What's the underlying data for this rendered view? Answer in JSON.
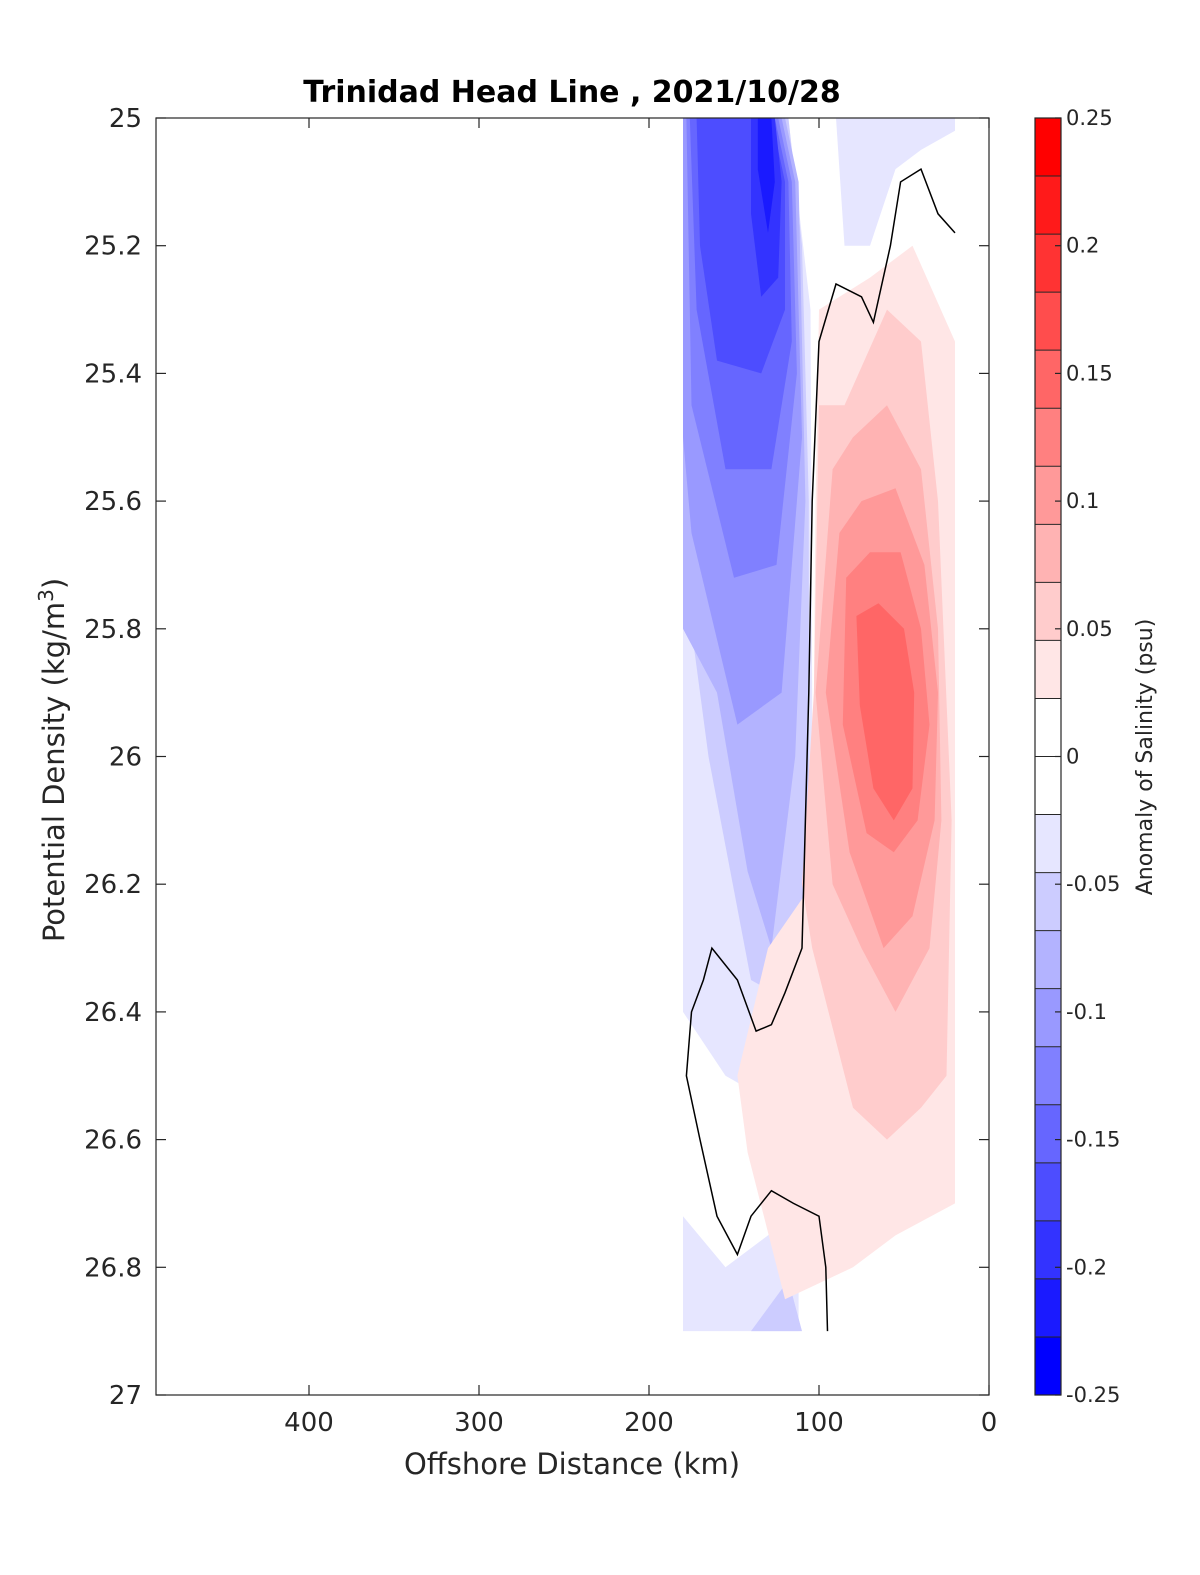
{
  "chart_data": {
    "type": "contour",
    "title": "Trinidad Head Line , 2021/10/28",
    "xlabel": "Offshore Distance (km)",
    "ylabel_main": "Potential Density (kg/m",
    "ylabel_sup": "3",
    "ylabel_close": ")",
    "colorbar_label": "Anomaly of Salinity (psu)",
    "x_reversed": true,
    "xlim": [
      490,
      0
    ],
    "ylim": [
      25,
      27
    ],
    "y_reversed": true,
    "xticks": [
      400,
      300,
      200,
      100,
      0
    ],
    "xtick_labels": [
      "400",
      "300",
      "200",
      "100",
      "0"
    ],
    "yticks": [
      25,
      25.2,
      25.4,
      25.6,
      25.8,
      26,
      26.2,
      26.4,
      26.6,
      26.8,
      27
    ],
    "ytick_labels": [
      "25",
      "25.2",
      "25.4",
      "25.6",
      "25.8",
      "26",
      "26.2",
      "26.4",
      "26.6",
      "26.8",
      "27"
    ],
    "clim": [
      -0.25,
      0.25
    ],
    "colorbar_levels": [
      -0.25,
      -0.225,
      -0.2,
      -0.175,
      -0.15,
      -0.125,
      -0.1,
      -0.075,
      -0.05,
      -0.025,
      0,
      0.025,
      0.05,
      0.075,
      0.1,
      0.125,
      0.15,
      0.175,
      0.2,
      0.225,
      0.25
    ],
    "colorbar_ticks": [
      -0.25,
      -0.2,
      -0.15,
      -0.1,
      -0.05,
      0,
      0.05,
      0.1,
      0.15,
      0.2,
      0.25
    ],
    "colorbar_tick_labels": [
      "-0.25",
      "-0.2",
      "-0.15",
      "-0.1",
      "-0.05",
      "0",
      "0.05",
      "0.1",
      "0.15",
      "0.2",
      "0.25"
    ],
    "colormap": [
      "#0000ff",
      "#1a1aff",
      "#3333ff",
      "#4d4dff",
      "#6666ff",
      "#8080ff",
      "#9999ff",
      "#b3b3ff",
      "#ccccff",
      "#e6e6ff",
      "#ffffff",
      "#ffffff",
      "#ffe6e6",
      "#ffcccc",
      "#ffb3b3",
      "#ff9999",
      "#ff8080",
      "#ff6666",
      "#ff4d4d",
      "#ff3333",
      "#ff1a1a",
      "#ff0000"
    ],
    "data_extent_x": [
      180,
      20
    ],
    "data_extent_y": [
      25,
      26.9
    ],
    "regions": [
      {
        "level": -0.025,
        "points": [
          [
            180,
            25
          ],
          [
            118,
            25
          ],
          [
            105,
            25.3
          ],
          [
            104,
            25.9
          ],
          [
            104,
            26.2
          ],
          [
            110,
            26.45
          ],
          [
            122,
            26.55
          ],
          [
            155,
            26.5
          ],
          [
            180,
            26.4
          ]
        ]
      },
      {
        "level": -0.05,
        "points": [
          [
            180,
            25
          ],
          [
            118,
            25
          ],
          [
            110,
            25.2
          ],
          [
            106,
            25.6
          ],
          [
            106,
            26.2
          ],
          [
            120,
            26.38
          ],
          [
            140,
            26.35
          ],
          [
            165,
            26.0
          ],
          [
            180,
            25.7
          ]
        ]
      },
      {
        "level": -0.075,
        "points": [
          [
            180,
            25
          ],
          [
            120,
            25
          ],
          [
            112,
            25.1
          ],
          [
            108,
            25.6
          ],
          [
            114,
            26.0
          ],
          [
            128,
            26.3
          ],
          [
            142,
            26.18
          ],
          [
            160,
            25.9
          ],
          [
            180,
            25.8
          ]
        ]
      },
      {
        "level": -0.1,
        "points": [
          [
            180,
            25
          ],
          [
            122,
            25
          ],
          [
            114,
            25.1
          ],
          [
            110,
            25.5
          ],
          [
            122,
            25.9
          ],
          [
            148,
            25.95
          ],
          [
            175,
            25.65
          ],
          [
            180,
            25.5
          ]
        ]
      },
      {
        "level": -0.125,
        "points": [
          [
            178,
            25
          ],
          [
            124,
            25
          ],
          [
            116,
            25.1
          ],
          [
            113,
            25.4
          ],
          [
            125,
            25.7
          ],
          [
            150,
            25.72
          ],
          [
            175,
            25.45
          ]
        ]
      },
      {
        "level": -0.15,
        "points": [
          [
            176,
            25
          ],
          [
            126,
            25
          ],
          [
            118,
            25.1
          ],
          [
            116,
            25.35
          ],
          [
            128,
            25.55
          ],
          [
            155,
            25.55
          ],
          [
            172,
            25.3
          ]
        ]
      },
      {
        "level": -0.175,
        "points": [
          [
            172,
            25
          ],
          [
            128,
            25
          ],
          [
            120,
            25.1
          ],
          [
            120,
            25.3
          ],
          [
            134,
            25.4
          ],
          [
            160,
            25.38
          ],
          [
            170,
            25.2
          ]
        ]
      },
      {
        "level": -0.2,
        "points": [
          [
            140,
            25
          ],
          [
            126,
            25
          ],
          [
            122,
            25.1
          ],
          [
            124,
            25.25
          ],
          [
            134,
            25.28
          ],
          [
            140,
            25.15
          ]
        ]
      },
      {
        "level": -0.225,
        "points": [
          [
            136,
            25
          ],
          [
            128,
            25
          ],
          [
            126,
            25.1
          ],
          [
            130,
            25.18
          ],
          [
            136,
            25.08
          ]
        ]
      },
      {
        "level": -0.025,
        "points": [
          [
            180,
            26.72
          ],
          [
            155,
            26.8
          ],
          [
            130,
            26.75
          ],
          [
            112,
            26.7
          ],
          [
            112,
            26.9
          ],
          [
            180,
            26.9
          ]
        ]
      },
      {
        "level": -0.05,
        "points": [
          [
            140,
            26.9
          ],
          [
            118,
            26.82
          ],
          [
            110,
            26.9
          ]
        ]
      },
      {
        "level": -0.025,
        "points": [
          [
            90,
            25
          ],
          [
            85,
            25.2
          ],
          [
            70,
            25.2
          ],
          [
            55,
            25.08
          ],
          [
            40,
            25.05
          ],
          [
            20,
            25.02
          ],
          [
            20,
            25
          ]
        ]
      },
      {
        "level": 0.025,
        "points": [
          [
            100,
            25.3
          ],
          [
            70,
            25.25
          ],
          [
            45,
            25.2
          ],
          [
            20,
            25.35
          ],
          [
            20,
            26.7
          ],
          [
            55,
            26.75
          ],
          [
            80,
            26.8
          ],
          [
            120,
            26.85
          ],
          [
            142,
            26.62
          ],
          [
            148,
            26.5
          ],
          [
            130,
            26.3
          ],
          [
            104,
            26.2
          ],
          [
            102,
            25.6
          ]
        ]
      },
      {
        "level": 0.05,
        "points": [
          [
            100,
            25.45
          ],
          [
            85,
            25.45
          ],
          [
            60,
            25.3
          ],
          [
            40,
            25.35
          ],
          [
            30,
            25.6
          ],
          [
            22,
            26.1
          ],
          [
            25,
            26.5
          ],
          [
            40,
            26.55
          ],
          [
            60,
            26.6
          ],
          [
            80,
            26.55
          ],
          [
            104,
            26.3
          ],
          [
            110,
            26.2
          ],
          [
            103,
            25.9
          ]
        ]
      },
      {
        "level": 0.075,
        "points": [
          [
            92,
            25.55
          ],
          [
            80,
            25.5
          ],
          [
            60,
            25.45
          ],
          [
            40,
            25.55
          ],
          [
            30,
            25.8
          ],
          [
            28,
            26.1
          ],
          [
            35,
            26.3
          ],
          [
            55,
            26.4
          ],
          [
            75,
            26.3
          ],
          [
            92,
            26.2
          ],
          [
            102,
            25.9
          ]
        ]
      },
      {
        "level": 0.1,
        "points": [
          [
            88,
            25.65
          ],
          [
            75,
            25.6
          ],
          [
            55,
            25.58
          ],
          [
            38,
            25.7
          ],
          [
            30,
            25.9
          ],
          [
            32,
            26.1
          ],
          [
            45,
            26.25
          ],
          [
            62,
            26.3
          ],
          [
            82,
            26.15
          ],
          [
            96,
            25.9
          ]
        ]
      },
      {
        "level": 0.125,
        "points": [
          [
            84,
            25.72
          ],
          [
            70,
            25.68
          ],
          [
            52,
            25.68
          ],
          [
            40,
            25.8
          ],
          [
            35,
            25.95
          ],
          [
            42,
            26.1
          ],
          [
            56,
            26.15
          ],
          [
            72,
            26.12
          ],
          [
            86,
            25.95
          ]
        ]
      },
      {
        "level": 0.15,
        "points": [
          [
            78,
            25.78
          ],
          [
            65,
            25.76
          ],
          [
            50,
            25.8
          ],
          [
            44,
            25.9
          ],
          [
            45,
            26.05
          ],
          [
            56,
            26.1
          ],
          [
            68,
            26.05
          ],
          [
            76,
            25.92
          ]
        ]
      }
    ],
    "zero_contour": [
      {
        "points": [
          [
            20,
            25.18
          ],
          [
            30,
            25.15
          ],
          [
            40,
            25.08
          ],
          [
            52,
            25.1
          ],
          [
            58,
            25.2
          ],
          [
            68,
            25.32
          ],
          [
            75,
            25.28
          ],
          [
            90,
            25.26
          ],
          [
            100,
            25.35
          ],
          [
            104,
            25.6
          ],
          [
            106,
            25.9
          ],
          [
            108,
            26.1
          ],
          [
            110,
            26.3
          ],
          [
            120,
            26.37
          ],
          [
            128,
            26.42
          ],
          [
            137,
            26.43
          ],
          [
            148,
            26.35
          ],
          [
            163,
            26.3
          ],
          [
            168,
            26.35
          ],
          [
            175,
            26.4
          ],
          [
            178,
            26.5
          ],
          [
            170,
            26.6
          ],
          [
            160,
            26.72
          ],
          [
            148,
            26.78
          ],
          [
            140,
            26.72
          ],
          [
            128,
            26.68
          ],
          [
            115,
            26.7
          ],
          [
            100,
            26.72
          ],
          [
            96,
            26.8
          ],
          [
            95,
            26.9
          ]
        ]
      }
    ]
  }
}
